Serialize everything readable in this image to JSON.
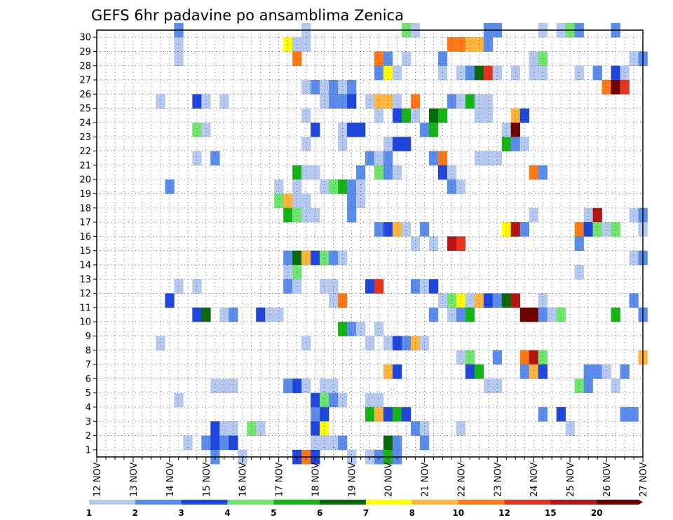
{
  "chart_data": {
    "type": "heatmap",
    "title": "GEFS 6hr padavine po ansamblima Zenica",
    "xlabel": "",
    "ylabel": "",
    "x_tick_labels": [
      "12 NOV",
      "13 NOV",
      "14 NOV",
      "15 NOV",
      "16 NOV",
      "17 NOV",
      "18 NOV",
      "19 NOV",
      "20 NOV",
      "21 NOV",
      "22 NOV",
      "23 NOV",
      "24 NOV",
      "25 NOV",
      "26 NOV",
      "27 NOV"
    ],
    "y_tick_labels": [
      "1",
      "2",
      "3",
      "4",
      "5",
      "6",
      "7",
      "8",
      "9",
      "10",
      "11",
      "12",
      "13",
      "14",
      "15",
      "16",
      "17",
      "18",
      "19",
      "20",
      "21",
      "22",
      "23",
      "24",
      "25",
      "26",
      "27",
      "28",
      "29",
      "30"
    ],
    "xlim": [
      0,
      60
    ],
    "ylim": [
      0,
      30
    ],
    "time_step_hours": 6,
    "grid": "dotted",
    "legend": "colorbar-bottom",
    "colorbar": {
      "levels": [
        "1",
        "2",
        "3",
        "4",
        "5",
        "6",
        "7",
        "8",
        "10",
        "12",
        "15",
        "20"
      ],
      "colors": [
        "#b4c8f0",
        "#5a8ceb",
        "#1e46dc",
        "#6ee66e",
        "#14b414",
        "#0a690a",
        "#ffff00",
        "#ffb43c",
        "#ff7814",
        "#e6321e",
        "#b41414",
        "#6e0000"
      ]
    },
    "cells": [
      [
        9,
        30,
        2
      ],
      [
        23,
        30,
        1
      ],
      [
        34,
        30,
        4
      ],
      [
        35,
        30,
        1
      ],
      [
        43,
        30,
        2
      ],
      [
        44,
        30,
        2
      ],
      [
        49,
        30,
        1
      ],
      [
        51,
        30,
        1
      ],
      [
        52,
        30,
        4
      ],
      [
        53,
        30,
        2
      ],
      [
        57,
        30,
        2
      ],
      [
        9,
        29,
        1
      ],
      [
        21,
        29,
        7
      ],
      [
        22,
        29,
        1
      ],
      [
        23,
        29,
        1
      ],
      [
        39,
        29,
        9
      ],
      [
        40,
        29,
        9
      ],
      [
        41,
        29,
        8
      ],
      [
        42,
        29,
        8
      ],
      [
        43,
        29,
        2
      ],
      [
        9,
        28,
        1
      ],
      [
        22,
        28,
        9
      ],
      [
        31,
        28,
        9
      ],
      [
        32,
        28,
        2
      ],
      [
        34,
        28,
        1
      ],
      [
        38,
        28,
        2
      ],
      [
        48,
        28,
        1
      ],
      [
        49,
        28,
        4
      ],
      [
        59,
        28,
        1
      ],
      [
        60,
        28,
        2
      ],
      [
        31,
        27,
        2
      ],
      [
        32,
        27,
        7
      ],
      [
        33,
        27,
        1
      ],
      [
        38,
        27,
        1
      ],
      [
        40,
        27,
        1
      ],
      [
        41,
        27,
        2
      ],
      [
        42,
        27,
        6
      ],
      [
        43,
        27,
        10
      ],
      [
        44,
        27,
        1
      ],
      [
        46,
        27,
        1
      ],
      [
        48,
        27,
        1
      ],
      [
        49,
        27,
        1
      ],
      [
        53,
        27,
        1
      ],
      [
        55,
        27,
        2
      ],
      [
        57,
        27,
        3
      ],
      [
        58,
        27,
        1
      ],
      [
        23,
        26,
        1
      ],
      [
        24,
        26,
        2
      ],
      [
        25,
        26,
        1
      ],
      [
        26,
        26,
        2
      ],
      [
        27,
        26,
        1
      ],
      [
        28,
        26,
        2
      ],
      [
        56,
        26,
        9
      ],
      [
        57,
        26,
        12
      ],
      [
        58,
        26,
        10
      ],
      [
        7,
        25,
        1
      ],
      [
        11,
        25,
        3
      ],
      [
        12,
        25,
        1
      ],
      [
        14,
        25,
        1
      ],
      [
        25,
        25,
        1
      ],
      [
        26,
        25,
        2
      ],
      [
        27,
        25,
        2
      ],
      [
        28,
        25,
        3
      ],
      [
        30,
        25,
        1
      ],
      [
        31,
        25,
        8
      ],
      [
        32,
        25,
        8
      ],
      [
        33,
        25,
        1
      ],
      [
        35,
        25,
        9
      ],
      [
        39,
        25,
        2
      ],
      [
        40,
        25,
        1
      ],
      [
        41,
        25,
        5
      ],
      [
        42,
        25,
        1
      ],
      [
        43,
        25,
        1
      ],
      [
        23,
        24,
        1
      ],
      [
        31,
        24,
        1
      ],
      [
        33,
        24,
        3
      ],
      [
        34,
        24,
        5
      ],
      [
        35,
        24,
        1
      ],
      [
        37,
        24,
        6
      ],
      [
        38,
        24,
        5
      ],
      [
        42,
        24,
        1
      ],
      [
        43,
        24,
        1
      ],
      [
        46,
        24,
        8
      ],
      [
        47,
        24,
        3
      ],
      [
        11,
        23,
        4
      ],
      [
        12,
        23,
        1
      ],
      [
        24,
        23,
        3
      ],
      [
        27,
        23,
        1
      ],
      [
        28,
        23,
        3
      ],
      [
        29,
        23,
        3
      ],
      [
        36,
        23,
        2
      ],
      [
        37,
        23,
        5
      ],
      [
        45,
        23,
        1
      ],
      [
        46,
        23,
        12
      ],
      [
        23,
        22,
        1
      ],
      [
        27,
        22,
        1
      ],
      [
        32,
        22,
        1
      ],
      [
        33,
        22,
        3
      ],
      [
        34,
        22,
        3
      ],
      [
        45,
        22,
        5
      ],
      [
        46,
        22,
        2
      ],
      [
        47,
        22,
        1
      ],
      [
        11,
        21,
        1
      ],
      [
        13,
        21,
        2
      ],
      [
        30,
        21,
        2
      ],
      [
        31,
        21,
        1
      ],
      [
        32,
        21,
        2
      ],
      [
        37,
        21,
        2
      ],
      [
        38,
        21,
        9
      ],
      [
        42,
        21,
        1
      ],
      [
        43,
        21,
        1
      ],
      [
        44,
        21,
        1
      ],
      [
        22,
        20,
        5
      ],
      [
        23,
        20,
        1
      ],
      [
        24,
        20,
        1
      ],
      [
        29,
        20,
        2
      ],
      [
        31,
        20,
        4
      ],
      [
        32,
        20,
        2
      ],
      [
        33,
        20,
        1
      ],
      [
        38,
        20,
        3
      ],
      [
        39,
        20,
        1
      ],
      [
        48,
        20,
        9
      ],
      [
        49,
        20,
        2
      ],
      [
        8,
        19,
        2
      ],
      [
        20,
        19,
        1
      ],
      [
        22,
        19,
        1
      ],
      [
        25,
        19,
        1
      ],
      [
        26,
        19,
        4
      ],
      [
        27,
        19,
        5
      ],
      [
        28,
        19,
        2
      ],
      [
        29,
        19,
        1
      ],
      [
        39,
        19,
        2
      ],
      [
        40,
        19,
        1
      ],
      [
        20,
        18,
        4
      ],
      [
        21,
        18,
        8
      ],
      [
        22,
        18,
        1
      ],
      [
        23,
        18,
        1
      ],
      [
        28,
        18,
        2
      ],
      [
        29,
        18,
        1
      ],
      [
        21,
        17,
        5
      ],
      [
        22,
        17,
        4
      ],
      [
        23,
        17,
        1
      ],
      [
        24,
        17,
        1
      ],
      [
        28,
        17,
        2
      ],
      [
        48,
        17,
        1
      ],
      [
        54,
        17,
        1
      ],
      [
        55,
        17,
        11
      ],
      [
        59,
        17,
        1
      ],
      [
        60,
        17,
        2
      ],
      [
        31,
        16,
        2
      ],
      [
        32,
        16,
        3
      ],
      [
        33,
        16,
        8
      ],
      [
        34,
        16,
        1
      ],
      [
        36,
        16,
        2
      ],
      [
        45,
        16,
        7
      ],
      [
        46,
        16,
        11
      ],
      [
        47,
        16,
        2
      ],
      [
        53,
        16,
        9
      ],
      [
        54,
        16,
        3
      ],
      [
        55,
        16,
        4
      ],
      [
        56,
        16,
        1
      ],
      [
        57,
        16,
        4
      ],
      [
        60,
        16,
        1
      ],
      [
        35,
        15,
        1
      ],
      [
        37,
        15,
        1
      ],
      [
        39,
        15,
        11
      ],
      [
        40,
        15,
        10
      ],
      [
        53,
        15,
        2
      ],
      [
        21,
        14,
        2
      ],
      [
        22,
        14,
        6
      ],
      [
        23,
        14,
        8
      ],
      [
        24,
        14,
        3
      ],
      [
        25,
        14,
        4
      ],
      [
        26,
        14,
        2
      ],
      [
        27,
        14,
        1
      ],
      [
        59,
        14,
        1
      ],
      [
        60,
        14,
        2
      ],
      [
        21,
        13,
        1
      ],
      [
        22,
        13,
        4
      ],
      [
        53,
        13,
        1
      ],
      [
        30,
        12,
        3
      ],
      [
        31,
        12,
        10
      ],
      [
        9,
        12,
        1
      ],
      [
        11,
        12,
        1
      ],
      [
        21,
        12,
        2
      ],
      [
        22,
        12,
        1
      ],
      [
        25,
        12,
        1
      ],
      [
        26,
        12,
        1
      ],
      [
        35,
        12,
        2
      ],
      [
        36,
        12,
        1
      ],
      [
        37,
        12,
        3
      ],
      [
        8,
        11,
        3
      ],
      [
        26,
        11,
        1
      ],
      [
        27,
        11,
        9
      ],
      [
        38,
        11,
        1
      ],
      [
        39,
        11,
        4
      ],
      [
        40,
        11,
        7
      ],
      [
        41,
        11,
        1
      ],
      [
        42,
        11,
        8
      ],
      [
        43,
        11,
        3
      ],
      [
        44,
        11,
        2
      ],
      [
        45,
        11,
        6
      ],
      [
        46,
        11,
        11
      ],
      [
        49,
        11,
        1
      ],
      [
        59,
        11,
        2
      ],
      [
        11,
        10,
        3
      ],
      [
        12,
        10,
        6
      ],
      [
        14,
        10,
        1
      ],
      [
        15,
        10,
        2
      ],
      [
        18,
        10,
        3
      ],
      [
        19,
        10,
        1
      ],
      [
        20,
        10,
        1
      ],
      [
        37,
        10,
        2
      ],
      [
        39,
        10,
        1
      ],
      [
        40,
        10,
        2
      ],
      [
        41,
        10,
        5
      ],
      [
        47,
        10,
        12
      ],
      [
        48,
        10,
        12
      ],
      [
        49,
        10,
        2
      ],
      [
        50,
        10,
        1
      ],
      [
        51,
        10,
        4
      ],
      [
        57,
        10,
        5
      ],
      [
        60,
        10,
        2
      ],
      [
        27,
        9,
        5
      ],
      [
        28,
        9,
        2
      ],
      [
        29,
        9,
        1
      ],
      [
        31,
        9,
        1
      ],
      [
        7,
        8,
        1
      ],
      [
        23,
        8,
        1
      ],
      [
        30,
        8,
        1
      ],
      [
        32,
        8,
        1
      ],
      [
        33,
        8,
        3
      ],
      [
        34,
        8,
        2
      ],
      [
        35,
        8,
        8
      ],
      [
        36,
        8,
        1
      ],
      [
        40,
        7,
        1
      ],
      [
        41,
        7,
        4
      ],
      [
        44,
        7,
        2
      ],
      [
        47,
        7,
        9
      ],
      [
        48,
        7,
        11
      ],
      [
        49,
        7,
        4
      ],
      [
        60,
        7,
        8
      ],
      [
        32,
        6,
        8
      ],
      [
        33,
        6,
        3
      ],
      [
        41,
        6,
        3
      ],
      [
        42,
        6,
        5
      ],
      [
        47,
        6,
        2
      ],
      [
        48,
        6,
        8
      ],
      [
        49,
        6,
        3
      ],
      [
        54,
        6,
        2
      ],
      [
        55,
        6,
        2
      ],
      [
        56,
        6,
        1
      ],
      [
        58,
        6,
        2
      ],
      [
        13,
        5,
        1
      ],
      [
        14,
        5,
        1
      ],
      [
        15,
        5,
        1
      ],
      [
        21,
        5,
        2
      ],
      [
        22,
        5,
        3
      ],
      [
        23,
        5,
        1
      ],
      [
        25,
        5,
        1
      ],
      [
        26,
        5,
        1
      ],
      [
        43,
        5,
        1
      ],
      [
        44,
        5,
        1
      ],
      [
        53,
        5,
        4
      ],
      [
        54,
        5,
        2
      ],
      [
        57,
        5,
        1
      ],
      [
        9,
        4,
        1
      ],
      [
        24,
        4,
        3
      ],
      [
        25,
        4,
        4
      ],
      [
        26,
        4,
        2
      ],
      [
        27,
        4,
        1
      ],
      [
        30,
        4,
        1
      ],
      [
        31,
        4,
        1
      ],
      [
        24,
        3,
        2
      ],
      [
        25,
        3,
        3
      ],
      [
        30,
        3,
        5
      ],
      [
        31,
        3,
        8
      ],
      [
        32,
        3,
        3
      ],
      [
        33,
        3,
        5
      ],
      [
        34,
        3,
        3
      ],
      [
        49,
        3,
        2
      ],
      [
        51,
        3,
        3
      ],
      [
        58,
        3,
        2
      ],
      [
        59,
        3,
        2
      ],
      [
        13,
        2,
        3
      ],
      [
        14,
        2,
        1
      ],
      [
        15,
        2,
        1
      ],
      [
        17,
        2,
        4
      ],
      [
        18,
        2,
        1
      ],
      [
        24,
        2,
        3
      ],
      [
        25,
        2,
        7
      ],
      [
        35,
        2,
        2
      ],
      [
        36,
        2,
        1
      ],
      [
        40,
        2,
        1
      ],
      [
        52,
        2,
        1
      ],
      [
        10,
        1,
        1
      ],
      [
        12,
        1,
        2
      ],
      [
        13,
        1,
        3
      ],
      [
        14,
        1,
        2
      ],
      [
        15,
        1,
        3
      ],
      [
        24,
        1,
        1
      ],
      [
        25,
        1,
        1
      ],
      [
        26,
        1,
        1
      ],
      [
        27,
        1,
        2
      ],
      [
        32,
        1,
        6
      ],
      [
        33,
        1,
        2
      ],
      [
        36,
        1,
        2
      ],
      [
        13,
        0,
        2
      ],
      [
        16,
        0,
        1
      ],
      [
        22,
        0,
        3
      ],
      [
        23,
        0,
        9
      ],
      [
        24,
        0,
        3
      ],
      [
        28,
        0,
        1
      ],
      [
        30,
        0,
        1
      ],
      [
        31,
        0,
        2
      ],
      [
        32,
        0,
        5
      ],
      [
        33,
        0,
        2
      ]
    ]
  }
}
